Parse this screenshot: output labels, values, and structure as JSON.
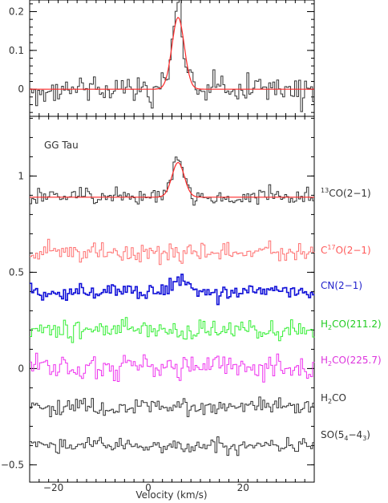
{
  "chart_data": [
    {
      "type": "line",
      "panel": "top",
      "xlim": [
        -25,
        35
      ],
      "ylim": [
        -0.07,
        0.23
      ],
      "y_ticks": [
        0,
        0.1,
        0.2
      ],
      "y_tick_labels": [
        "0",
        "0.1",
        "0.2"
      ],
      "series": [
        {
          "color": "#333333",
          "style": "histogram",
          "baseline": 0,
          "noise": 0.018,
          "peak": {
            "center": 6.3,
            "height": 0.2,
            "width": 1.2
          }
        },
        {
          "color": "#ff2a2a",
          "style": "fit",
          "baseline": 0,
          "peak": {
            "center": 6.3,
            "height": 0.185,
            "width": 1.3
          }
        }
      ]
    },
    {
      "type": "line",
      "panel": "bottom",
      "title": "GG Tau",
      "xlabel": "Velocity (km/s)",
      "xlim": [
        -25,
        35
      ],
      "ylim": [
        -0.59,
        1.31
      ],
      "x_ticks": [
        -20,
        0,
        20
      ],
      "x_tick_labels": [
        "−20",
        "0",
        "20"
      ],
      "y_ticks": [
        -0.5,
        0,
        0.5,
        1
      ],
      "y_tick_labels": [
        "−0.5",
        "0",
        "0.5",
        "1"
      ],
      "series": [
        {
          "color": "#333333",
          "style": "histogram",
          "baseline": 0.89,
          "noise": 0.02,
          "peak": {
            "center": 6.3,
            "height": 0.2,
            "width": 1.2
          }
        },
        {
          "color": "#ff2a2a",
          "style": "fit",
          "baseline": 0.89,
          "peak": {
            "center": 6.3,
            "height": 0.18,
            "width": 1.3
          }
        },
        {
          "color": "#ff7070",
          "style": "histogram",
          "baseline": 0.6,
          "noise": 0.025
        },
        {
          "color": "#1010d8",
          "style": "histogram",
          "baseline": 0.4,
          "noise": 0.018,
          "peak": {
            "center": 6.5,
            "height": 0.07,
            "width": 1.6
          }
        },
        {
          "color": "#33ee33",
          "style": "histogram",
          "baseline": 0.2,
          "noise": 0.025
        },
        {
          "color": "#ee33ee",
          "style": "histogram",
          "baseline": 0.01,
          "noise": 0.03
        },
        {
          "color": "#333333",
          "style": "histogram",
          "baseline": -0.2,
          "noise": 0.02
        },
        {
          "color": "#333333",
          "style": "histogram",
          "baseline": -0.4,
          "noise": 0.02
        }
      ]
    }
  ],
  "labels": {
    "l13co": {
      "sup": "13",
      "main": "CO(2−1)",
      "color": "#333333"
    },
    "lc17o": {
      "pre": "C",
      "sup": "17",
      "main": "O(2−1)",
      "color": "#ff5a5a"
    },
    "lcn": {
      "main": "CN(2−1)",
      "color": "#2222cc"
    },
    "lh2co211": {
      "pre": "H",
      "sub": "2",
      "main": "CO(211.2)",
      "color": "#22cc22"
    },
    "lh2co225": {
      "pre": "H",
      "sub": "2",
      "main": "CO(225.7)",
      "color": "#dd33dd"
    },
    "lh2co": {
      "pre": "H",
      "sub": "2",
      "main": "CO",
      "color": "#333333"
    },
    "lso": {
      "pre": "SO(5",
      "sub": "4",
      "main": "−4",
      "sub2": "3",
      "post": ")",
      "color": "#333333"
    }
  }
}
